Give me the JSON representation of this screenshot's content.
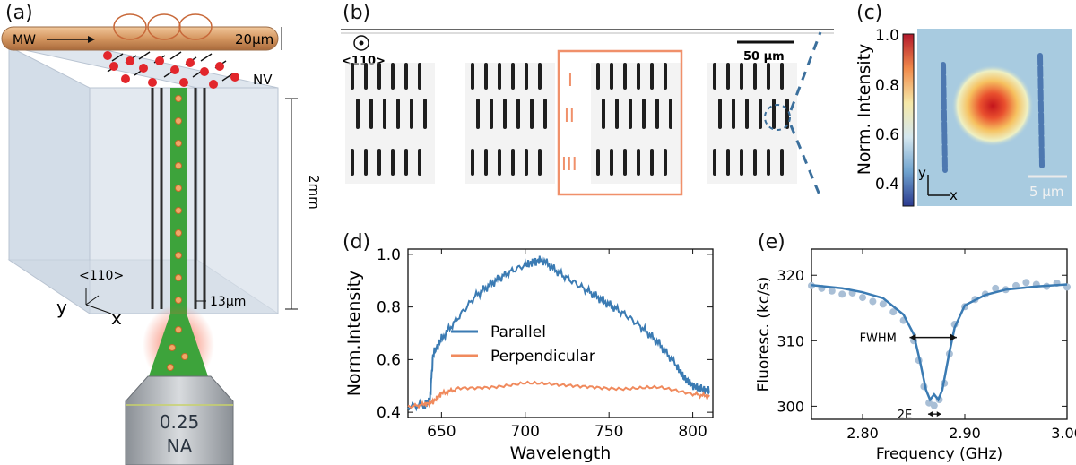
{
  "panels": {
    "a": {
      "label": "(a)",
      "mw_label": "MW",
      "wire_width": "20μm",
      "nv_label": "NV",
      "depth_label": "2mm",
      "direction_label": "<110>",
      "axis_y": "y",
      "axis_x": "x",
      "spacing_label": "13μm",
      "objective_na_value": "0.25",
      "objective_na_unit": "NA"
    },
    "b": {
      "label": "(b)",
      "direction_label": "<110>",
      "scale_bar_label": "50 μm",
      "rows": [
        "I",
        "II",
        "III"
      ]
    },
    "c": {
      "label": "(c)",
      "colorbar_label": "Norm. Intensity",
      "colorbar_ticks": [
        "1.0",
        "0.8",
        "0.6",
        "0.4"
      ],
      "axis_y": "y",
      "axis_x": "x",
      "scale_bar_label": "5 μm"
    },
    "d": {
      "label": "(d)"
    },
    "e": {
      "label": "(e)",
      "fwhm_label": "FWHM",
      "splitting_label": "2E"
    }
  },
  "chart_data": [
    {
      "id": "d",
      "type": "line",
      "xlabel": "Wavelength",
      "ylabel": "Norm.Intensity",
      "xlim": [
        630,
        812
      ],
      "ylim": [
        0.38,
        1.02
      ],
      "xticks": [
        650,
        700,
        750,
        800
      ],
      "yticks": [
        0.4,
        0.6,
        0.8,
        1.0
      ],
      "legend_position": "center-right",
      "series": [
        {
          "name": "Parallel",
          "color": "#3b7bb3",
          "x": [
            630,
            640,
            643,
            645,
            650,
            660,
            670,
            680,
            690,
            700,
            705,
            710,
            720,
            730,
            740,
            750,
            760,
            770,
            780,
            790,
            795,
            800,
            805,
            810
          ],
          "y": [
            0.42,
            0.43,
            0.44,
            0.62,
            0.68,
            0.76,
            0.84,
            0.89,
            0.93,
            0.96,
            0.97,
            0.98,
            0.93,
            0.89,
            0.85,
            0.81,
            0.77,
            0.72,
            0.66,
            0.58,
            0.53,
            0.5,
            0.49,
            0.48
          ]
        },
        {
          "name": "Perpendicular",
          "color": "#f08a5d",
          "x": [
            630,
            640,
            645,
            650,
            660,
            680,
            700,
            720,
            740,
            760,
            780,
            800,
            810
          ],
          "y": [
            0.42,
            0.43,
            0.44,
            0.47,
            0.49,
            0.5,
            0.51,
            0.5,
            0.5,
            0.49,
            0.49,
            0.47,
            0.46
          ]
        }
      ]
    },
    {
      "id": "e",
      "type": "scatter",
      "xlabel": "Frequency (GHz)",
      "ylabel": "Fluoresc. (kc/s)",
      "xlim": [
        2.75,
        3.0
      ],
      "ylim": [
        298,
        324
      ],
      "xticks": [
        "2.80",
        "2.90",
        "3.00"
      ],
      "yticks": [
        300,
        310,
        320
      ],
      "series": [
        {
          "name": "",
          "kind": "scatter",
          "color": "#a9bfd6",
          "x": [
            2.75,
            2.76,
            2.77,
            2.78,
            2.79,
            2.8,
            2.81,
            2.82,
            2.83,
            2.84,
            2.85,
            2.855,
            2.86,
            2.865,
            2.87,
            2.875,
            2.88,
            2.885,
            2.89,
            2.9,
            2.91,
            2.92,
            2.93,
            2.94,
            2.95,
            2.96,
            2.97,
            2.98,
            2.99,
            3.0
          ],
          "y": [
            318.4,
            318.0,
            317.6,
            317.1,
            317.3,
            316.6,
            316.0,
            315.6,
            314.4,
            313.1,
            310.0,
            307.0,
            303.0,
            300.5,
            300.1,
            301.0,
            303.5,
            308.0,
            312.5,
            315.2,
            316.3,
            317.1,
            318.0,
            317.8,
            318.4,
            318.9,
            318.6,
            318.3,
            318.8,
            318.2
          ]
        },
        {
          "name": "",
          "kind": "fit",
          "color": "#3b7bb3",
          "x": [
            2.75,
            2.78,
            2.8,
            2.82,
            2.84,
            2.85,
            2.856,
            2.862,
            2.866,
            2.87,
            2.874,
            2.878,
            2.884,
            2.89,
            2.9,
            2.92,
            2.94,
            2.97,
            3.0
          ],
          "y": [
            318.5,
            318.0,
            317.4,
            316.5,
            314.0,
            311.0,
            307.0,
            302.5,
            301.0,
            301.8,
            301.0,
            302.5,
            307.5,
            312.0,
            315.4,
            317.0,
            317.8,
            318.3,
            318.6
          ]
        }
      ]
    }
  ]
}
